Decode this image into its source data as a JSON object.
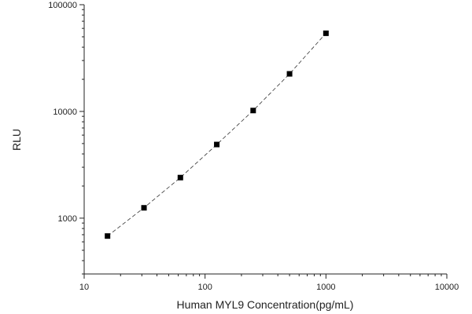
{
  "chart_data": {
    "type": "scatter",
    "title": "",
    "xlabel": "Human MYL9 Concentration(pg/mL)",
    "ylabel": "RLU",
    "xscale": "log",
    "yscale": "log",
    "xlim": [
      10,
      10000
    ],
    "ylim": [
      300,
      100000
    ],
    "x_ticks": [
      "10",
      "100",
      "1000",
      "10000"
    ],
    "y_ticks": [
      "1000",
      "10000",
      "100000"
    ],
    "grid": false,
    "legend": "none",
    "fit_line": "dashed line through points",
    "series": [
      {
        "x": [
          15.6,
          31.25,
          62.5,
          125,
          250,
          500,
          1000
        ],
        "y": [
          680,
          1250,
          2400,
          4900,
          10200,
          22500,
          54000
        ]
      }
    ],
    "colors": {
      "point": "#000000",
      "axis": "#222222",
      "line": "#333333"
    }
  }
}
